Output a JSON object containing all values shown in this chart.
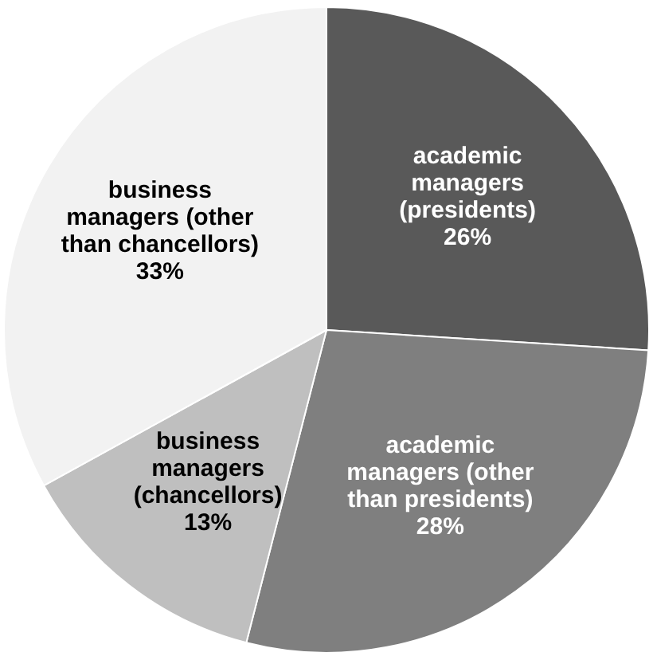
{
  "chart_data": {
    "type": "pie",
    "categories": [
      "academic managers (presidents)",
      "academic managers (other than presidents)",
      "business managers (chancellors)",
      "business managers (other than chancellors)"
    ],
    "values": [
      26,
      28,
      13,
      33
    ],
    "colors": [
      "#595959",
      "#7f7f7f",
      "#bfbfbf",
      "#f2f2f2"
    ],
    "value_labels": [
      "26%",
      "28%",
      "13%",
      "33%"
    ],
    "legend": false
  }
}
